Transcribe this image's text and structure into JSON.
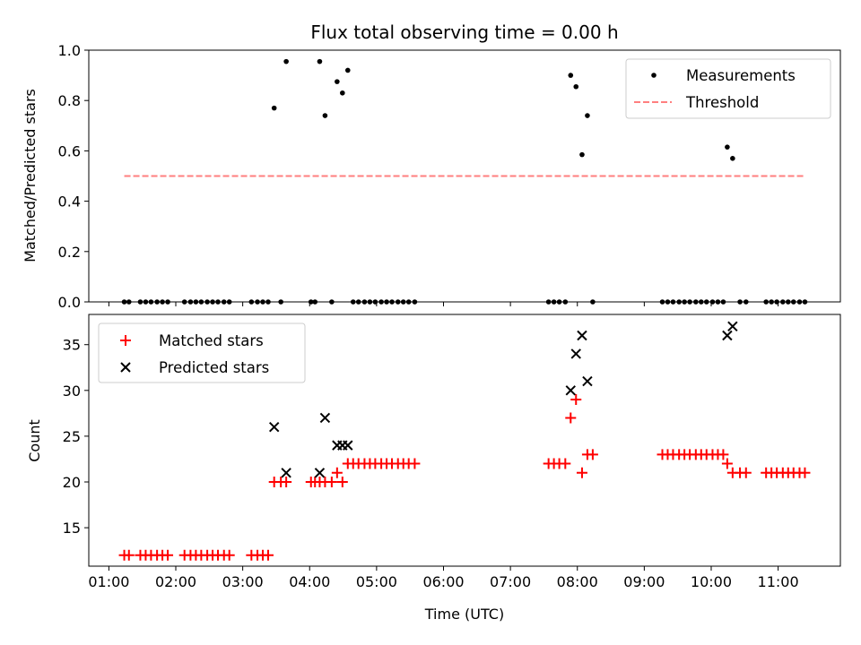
{
  "chart_data": [
    {
      "type": "scatter",
      "title": "Flux total observing time = 0.00 h",
      "xlabel": "",
      "ylabel": "Matched/Predicted stars",
      "xlim": [
        0.7,
        11.93
      ],
      "ylim": [
        0,
        1.0
      ],
      "y_ticks": [
        0.0,
        0.2,
        0.4,
        0.6,
        0.8,
        1.0
      ],
      "y_tick_labels": [
        "0.0",
        "0.2",
        "0.4",
        "0.6",
        "0.8",
        "1.0"
      ],
      "x_ticks": [
        1,
        2,
        3,
        4,
        5,
        6,
        7,
        8,
        9,
        10,
        11
      ],
      "legend": {
        "position": "top-right",
        "entries": [
          "Measurements",
          "Threshold"
        ]
      },
      "series": [
        {
          "name": "Measurements",
          "marker": "dot",
          "color": "#000000",
          "points": [
            [
              1.23,
              0
            ],
            [
              1.3,
              0
            ],
            [
              1.47,
              0
            ],
            [
              1.55,
              0
            ],
            [
              1.63,
              0
            ],
            [
              1.72,
              0
            ],
            [
              1.8,
              0
            ],
            [
              1.88,
              0
            ],
            [
              2.13,
              0
            ],
            [
              2.22,
              0
            ],
            [
              2.3,
              0
            ],
            [
              2.38,
              0
            ],
            [
              2.47,
              0
            ],
            [
              2.55,
              0
            ],
            [
              2.63,
              0
            ],
            [
              2.72,
              0
            ],
            [
              2.8,
              0
            ],
            [
              3.13,
              0
            ],
            [
              3.22,
              0
            ],
            [
              3.3,
              0
            ],
            [
              3.38,
              0
            ],
            [
              3.47,
              0.77
            ],
            [
              3.57,
              0
            ],
            [
              3.65,
              0.955
            ],
            [
              4.02,
              0
            ],
            [
              4.08,
              0
            ],
            [
              4.15,
              0.955
            ],
            [
              4.23,
              0.74
            ],
            [
              4.33,
              0
            ],
            [
              4.41,
              0.875
            ],
            [
              4.49,
              0.83
            ],
            [
              4.57,
              0.92
            ],
            [
              4.65,
              0
            ],
            [
              4.73,
              0
            ],
            [
              4.82,
              0
            ],
            [
              4.9,
              0
            ],
            [
              4.98,
              0
            ],
            [
              5.07,
              0
            ],
            [
              5.15,
              0
            ],
            [
              5.23,
              0
            ],
            [
              5.32,
              0
            ],
            [
              5.4,
              0
            ],
            [
              5.48,
              0
            ],
            [
              5.57,
              0
            ],
            [
              7.57,
              0
            ],
            [
              7.65,
              0
            ],
            [
              7.73,
              0
            ],
            [
              7.82,
              0
            ],
            [
              7.9,
              0.9
            ],
            [
              7.98,
              0.855
            ],
            [
              8.07,
              0.585
            ],
            [
              8.15,
              0.74
            ],
            [
              8.23,
              0
            ],
            [
              9.27,
              0
            ],
            [
              9.35,
              0
            ],
            [
              9.43,
              0
            ],
            [
              9.52,
              0
            ],
            [
              9.6,
              0
            ],
            [
              9.68,
              0
            ],
            [
              9.77,
              0
            ],
            [
              9.85,
              0
            ],
            [
              9.93,
              0
            ],
            [
              10.02,
              0
            ],
            [
              10.1,
              0
            ],
            [
              10.18,
              0
            ],
            [
              10.24,
              0.615
            ],
            [
              10.32,
              0.57
            ],
            [
              10.43,
              0
            ],
            [
              10.52,
              0
            ],
            [
              10.82,
              0
            ],
            [
              10.9,
              0
            ],
            [
              10.98,
              0
            ],
            [
              11.07,
              0
            ],
            [
              11.15,
              0
            ],
            [
              11.23,
              0
            ],
            [
              11.32,
              0
            ],
            [
              11.4,
              0
            ]
          ]
        },
        {
          "name": "Threshold",
          "style": "dashed",
          "color": "#ff7f7f",
          "points": [
            [
              1.23,
              0.5
            ],
            [
              11.4,
              0.5
            ]
          ]
        }
      ]
    },
    {
      "type": "scatter",
      "title": "",
      "xlabel": "Time (UTC)",
      "ylabel": "Count",
      "xlim": [
        0.7,
        11.93
      ],
      "ylim": [
        10.8,
        38.3
      ],
      "y_ticks": [
        15,
        20,
        25,
        30,
        35
      ],
      "y_tick_labels": [
        "15",
        "20",
        "25",
        "30",
        "35"
      ],
      "x_ticks": [
        1,
        2,
        3,
        4,
        5,
        6,
        7,
        8,
        9,
        10,
        11
      ],
      "x_tick_labels": [
        "01:00",
        "02:00",
        "03:00",
        "04:00",
        "05:00",
        "06:00",
        "07:00",
        "08:00",
        "09:00",
        "10:00",
        "11:00"
      ],
      "legend": {
        "position": "top-left",
        "entries": [
          "Matched stars",
          "Predicted stars"
        ]
      },
      "series": [
        {
          "name": "Matched stars",
          "marker": "plus",
          "color": "#ff0000",
          "points": [
            [
              1.23,
              12
            ],
            [
              1.3,
              12
            ],
            [
              1.47,
              12
            ],
            [
              1.55,
              12
            ],
            [
              1.63,
              12
            ],
            [
              1.72,
              12
            ],
            [
              1.8,
              12
            ],
            [
              1.88,
              12
            ],
            [
              2.13,
              12
            ],
            [
              2.22,
              12
            ],
            [
              2.3,
              12
            ],
            [
              2.38,
              12
            ],
            [
              2.47,
              12
            ],
            [
              2.55,
              12
            ],
            [
              2.63,
              12
            ],
            [
              2.72,
              12
            ],
            [
              2.8,
              12
            ],
            [
              3.13,
              12
            ],
            [
              3.22,
              12
            ],
            [
              3.3,
              12
            ],
            [
              3.38,
              12
            ],
            [
              3.47,
              20
            ],
            [
              3.57,
              20
            ],
            [
              3.65,
              20
            ],
            [
              4.02,
              20
            ],
            [
              4.08,
              20
            ],
            [
              4.15,
              20
            ],
            [
              4.23,
              20
            ],
            [
              4.33,
              20
            ],
            [
              4.41,
              21
            ],
            [
              4.49,
              20
            ],
            [
              4.57,
              22
            ],
            [
              4.65,
              22
            ],
            [
              4.73,
              22
            ],
            [
              4.82,
              22
            ],
            [
              4.9,
              22
            ],
            [
              4.98,
              22
            ],
            [
              5.07,
              22
            ],
            [
              5.15,
              22
            ],
            [
              5.23,
              22
            ],
            [
              5.32,
              22
            ],
            [
              5.4,
              22
            ],
            [
              5.48,
              22
            ],
            [
              5.57,
              22
            ],
            [
              7.57,
              22
            ],
            [
              7.65,
              22
            ],
            [
              7.73,
              22
            ],
            [
              7.82,
              22
            ],
            [
              7.9,
              27
            ],
            [
              7.98,
              29
            ],
            [
              8.07,
              21
            ],
            [
              8.15,
              23
            ],
            [
              8.23,
              23
            ],
            [
              9.27,
              23
            ],
            [
              9.35,
              23
            ],
            [
              9.43,
              23
            ],
            [
              9.52,
              23
            ],
            [
              9.6,
              23
            ],
            [
              9.68,
              23
            ],
            [
              9.77,
              23
            ],
            [
              9.85,
              23
            ],
            [
              9.93,
              23
            ],
            [
              10.02,
              23
            ],
            [
              10.1,
              23
            ],
            [
              10.18,
              23
            ],
            [
              10.24,
              22
            ],
            [
              10.32,
              21
            ],
            [
              10.43,
              21
            ],
            [
              10.52,
              21
            ],
            [
              10.82,
              21
            ],
            [
              10.9,
              21
            ],
            [
              10.98,
              21
            ],
            [
              11.07,
              21
            ],
            [
              11.15,
              21
            ],
            [
              11.23,
              21
            ],
            [
              11.32,
              21
            ],
            [
              11.4,
              21
            ]
          ]
        },
        {
          "name": "Predicted stars",
          "marker": "x",
          "color": "#000000",
          "points": [
            [
              3.47,
              26
            ],
            [
              3.65,
              21
            ],
            [
              4.15,
              21
            ],
            [
              4.23,
              27
            ],
            [
              4.41,
              24
            ],
            [
              4.49,
              24
            ],
            [
              4.57,
              24
            ],
            [
              7.9,
              30
            ],
            [
              7.98,
              34
            ],
            [
              8.07,
              36
            ],
            [
              8.15,
              31
            ],
            [
              10.24,
              36
            ],
            [
              10.32,
              37
            ]
          ]
        }
      ]
    }
  ]
}
